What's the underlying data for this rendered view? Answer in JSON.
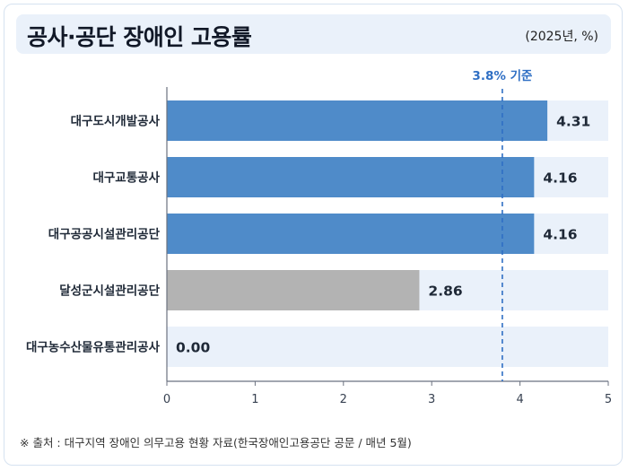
{
  "header": {
    "title": "공사·공단 장애인 고용률",
    "unit": "(2025년, %)"
  },
  "footer": {
    "source": "※ 출처 : 대구지역 장애인 의무고용 현황 자료(한국장애인고용공단 공문 / 매년 5월)"
  },
  "chart_data": {
    "type": "bar",
    "orientation": "horizontal",
    "categories": [
      "대구도시개발공사",
      "대구교통공사",
      "대구공공시설관리공단",
      "달성군시설관리공단",
      "대구농수산물유통관리공사"
    ],
    "values": [
      4.31,
      4.16,
      4.16,
      2.86,
      0.0
    ],
    "value_labels": [
      "4.31",
      "4.16",
      "4.16",
      "2.86",
      "0.00"
    ],
    "bar_colors": [
      "#4f8bc9",
      "#4f8bc9",
      "#4f8bc9",
      "#b3b3b3",
      "#4f8bc9"
    ],
    "track_color": "#eaf1fa",
    "xlim": [
      0,
      5
    ],
    "xticks": [
      0,
      1,
      2,
      3,
      4,
      5
    ],
    "grid": false,
    "reference_line": {
      "value": 3.8,
      "label": "3.8% 기준",
      "color": "#2f6fc4",
      "style": "dashed"
    }
  }
}
